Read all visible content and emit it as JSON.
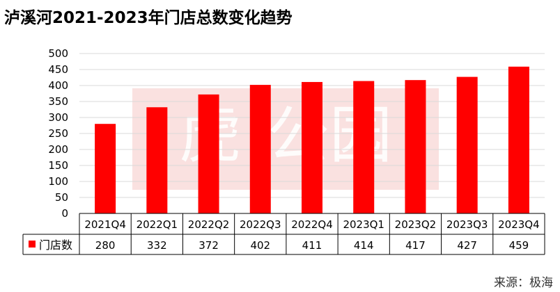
{
  "title": "泸溪河2021-2023年门店总数变化趋势",
  "source": "来源：极海",
  "colors": {
    "bar": "#ff0000",
    "watermark": "#f6c9c6",
    "grid": "#d9d9d9"
  },
  "chart_data": {
    "type": "bar",
    "categories": [
      "2021Q4",
      "2022Q1",
      "2022Q2",
      "2022Q3",
      "2022Q4",
      "2023Q1",
      "2023Q2",
      "2023Q3",
      "2023Q4"
    ],
    "series": [
      {
        "name": "门店数",
        "values": [
          280,
          332,
          372,
          402,
          411,
          414,
          417,
          427,
          459
        ]
      }
    ],
    "ylim": [
      0,
      500
    ],
    "yticks": [
      0,
      50,
      100,
      150,
      200,
      250,
      300,
      350,
      400,
      450,
      500
    ],
    "grid": true,
    "legend": "data-table"
  }
}
